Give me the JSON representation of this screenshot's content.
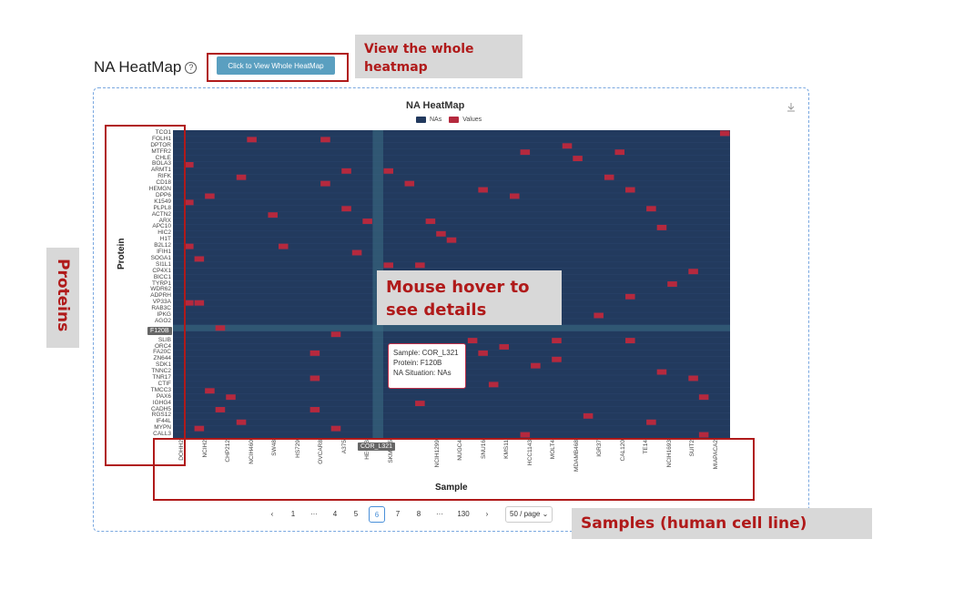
{
  "header": {
    "title": "NA HeatMap",
    "help_glyph": "?",
    "view_button": "Click to View Whole HeatMap"
  },
  "callouts": {
    "view_whole": "View the whole heatmap",
    "hover": "Mouse hover to see details",
    "samples": "Samples (human cell line)",
    "proteins": "Proteins"
  },
  "chart": {
    "title": "NA HeatMap",
    "legend": [
      {
        "name": "NAs",
        "color": "#223a5e"
      },
      {
        "name": "Values",
        "color": "#b5293e"
      }
    ],
    "ylabel": "Protein",
    "xlabel": "Sample",
    "highlight_protein": "F120B",
    "highlight_sample": "COR_L321"
  },
  "chart_data": {
    "type": "heatmap",
    "title": "NA HeatMap",
    "xlabel": "Sample",
    "ylabel": "Protein",
    "legend": [
      "NAs",
      "Values"
    ],
    "proteins": [
      "TCO1",
      "FOLH1",
      "DPTOR",
      "MTFR2",
      "CHLE",
      "BOLA3",
      "ARMT1",
      "RIFK",
      "CD18",
      "HEMGN",
      "DPP6",
      "K1549",
      "PLPL8",
      "ACTN2",
      "ARX",
      "APC10",
      "HIC2",
      "H1T",
      "B2L12",
      "IFIH1",
      "SOGA1",
      "SI1L1",
      "CP4X1",
      "BICC1",
      "TYRP1",
      "WDR62",
      "ADPRH",
      "VP33A",
      "RAB3C",
      "IPKG",
      "AGO2",
      "F120B",
      "",
      "SLIB",
      "ORC4",
      "FA20C",
      "ZN644",
      "SDK1",
      "TNNC2",
      "TNR17",
      "CTIF",
      "TMCC3",
      "PAX6",
      "IGHG4",
      "CADH5",
      "RGS12",
      "IF44L",
      "MYPN",
      "CALL3"
    ],
    "samples_visible": [
      "DOHH2",
      "NCIH2",
      "CHP212",
      "NCIH460",
      "SW48",
      "HS729",
      "OVCAR8",
      "A375",
      "HEC1B",
      "SKMEL5",
      "COR_L321",
      "NCIH1299",
      "NUGC4",
      "SNU16",
      "KMS11",
      "HCC1143",
      "MOLT4",
      "MDAMB468",
      "IGR37",
      "CAL120",
      "TE14",
      "NCIH1693",
      "SUIT2",
      "MIAPACA2"
    ],
    "value_cells": [
      [
        0,
        52
      ],
      [
        1,
        7
      ],
      [
        1,
        14
      ],
      [
        2,
        37
      ],
      [
        3,
        33
      ],
      [
        3,
        42
      ],
      [
        4,
        38
      ],
      [
        5,
        1
      ],
      [
        6,
        16
      ],
      [
        6,
        20
      ],
      [
        7,
        6
      ],
      [
        7,
        41
      ],
      [
        8,
        14
      ],
      [
        8,
        22
      ],
      [
        9,
        29
      ],
      [
        9,
        43
      ],
      [
        10,
        3
      ],
      [
        10,
        32
      ],
      [
        11,
        1
      ],
      [
        12,
        16
      ],
      [
        12,
        45
      ],
      [
        13,
        9
      ],
      [
        14,
        18
      ],
      [
        14,
        24
      ],
      [
        15,
        46
      ],
      [
        16,
        25
      ],
      [
        17,
        26
      ],
      [
        18,
        1
      ],
      [
        18,
        10
      ],
      [
        19,
        17
      ],
      [
        20,
        2
      ],
      [
        21,
        20
      ],
      [
        21,
        23
      ],
      [
        22,
        49
      ],
      [
        23,
        33
      ],
      [
        24,
        47
      ],
      [
        25,
        21
      ],
      [
        26,
        43
      ],
      [
        27,
        1
      ],
      [
        27,
        2
      ],
      [
        28,
        23
      ],
      [
        29,
        40
      ],
      [
        30,
        31
      ],
      [
        31,
        4
      ],
      [
        32,
        15
      ],
      [
        33,
        28
      ],
      [
        33,
        36
      ],
      [
        33,
        43
      ],
      [
        34,
        31
      ],
      [
        35,
        13
      ],
      [
        35,
        29
      ],
      [
        36,
        36
      ],
      [
        37,
        34
      ],
      [
        38,
        46
      ],
      [
        39,
        13
      ],
      [
        39,
        49
      ],
      [
        40,
        30
      ],
      [
        41,
        3
      ],
      [
        42,
        5
      ],
      [
        42,
        50
      ],
      [
        43,
        23
      ],
      [
        44,
        4
      ],
      [
        44,
        13
      ],
      [
        45,
        39
      ],
      [
        46,
        6
      ],
      [
        46,
        45
      ],
      [
        47,
        2
      ],
      [
        47,
        15
      ],
      [
        48,
        33
      ],
      [
        48,
        50
      ]
    ],
    "hover_tooltip": {
      "sample": "COR_L321",
      "protein": "F120B",
      "na_situation": "NAs"
    }
  },
  "tooltip": {
    "line1": "Sample: COR_L321",
    "line2": "Protein: F120B",
    "line3": "NA Situation: NAs"
  },
  "pagination": {
    "prev": "‹",
    "next": "›",
    "ellipsis": "···",
    "pages": [
      "1",
      "4",
      "5",
      "6",
      "7",
      "8",
      "130"
    ],
    "current": "6",
    "page_size": "50 / page"
  },
  "icons": {
    "download": "download-icon",
    "help": "question-circle-icon"
  }
}
